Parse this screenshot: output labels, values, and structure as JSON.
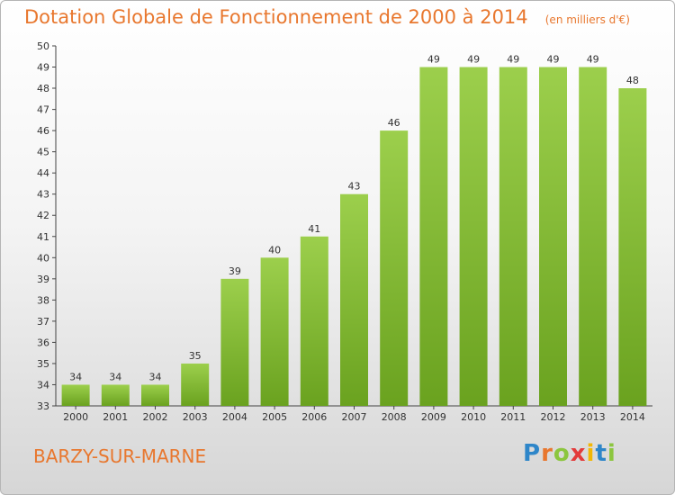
{
  "chart_data": {
    "type": "bar",
    "title": "Dotation Globale de Fonctionnement de 2000 à 2014",
    "unit": "(en milliers d'€)",
    "categories": [
      "2000",
      "2001",
      "2002",
      "2003",
      "2004",
      "2005",
      "2006",
      "2007",
      "2008",
      "2009",
      "2010",
      "2011",
      "2012",
      "2013",
      "2014"
    ],
    "values": [
      34,
      34,
      34,
      35,
      39,
      40,
      41,
      43,
      46,
      49,
      49,
      49,
      49,
      49,
      48
    ],
    "ylim": [
      33,
      50
    ],
    "yticks": [
      33,
      34,
      35,
      36,
      37,
      38,
      39,
      40,
      41,
      42,
      43,
      44,
      45,
      46,
      47,
      48,
      49,
      50
    ],
    "grid": false,
    "bar_color_top": "#9ccf4c",
    "bar_color_bottom": "#6aa21f"
  },
  "footer": {
    "commune": "BARZY-SUR-MARNE",
    "logo_letters": [
      {
        "ch": "P",
        "color": "#2e86c9"
      },
      {
        "ch": "r",
        "color": "#e8772e"
      },
      {
        "ch": "o",
        "color": "#8cc63f"
      },
      {
        "ch": "x",
        "color": "#e33b3b"
      },
      {
        "ch": "i",
        "color": "#f2b705"
      },
      {
        "ch": "t",
        "color": "#2e86c9"
      },
      {
        "ch": "i",
        "color": "#8cc63f"
      }
    ]
  },
  "colors": {
    "accent": "#e8772e"
  }
}
